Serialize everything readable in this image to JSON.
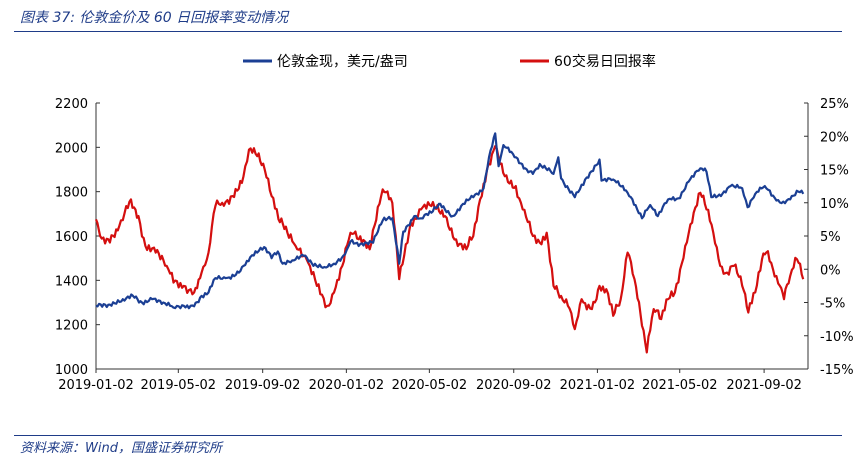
{
  "figure": {
    "caption": "图表 37:  伦敦金价及 60 日回报率变动情况",
    "source": "资料来源：Wind，国盛证券研究所"
  },
  "colors": {
    "gold": "#1b3f94",
    "ret": "#d40f0f",
    "accent": "#1f3c88"
  },
  "chart_data": {
    "type": "line",
    "title": "",
    "xlabel": "",
    "ylabel": "",
    "grid": false,
    "legend_position": "top",
    "x_tick_labels": [
      "2019-01-02",
      "2019-05-02",
      "2019-09-02",
      "2020-01-02",
      "2020-05-02",
      "2020-09-02",
      "2021-01-02",
      "2021-05-02",
      "2021-09-02"
    ],
    "y_left": {
      "min": 1000,
      "max": 2200,
      "ticks": [
        1000,
        1200,
        1400,
        1600,
        1800,
        2000,
        2200
      ]
    },
    "y_right": {
      "min": -15,
      "max": 25,
      "ticks": [
        "-15%",
        "-10%",
        "-5%",
        "0%",
        "5%",
        "10%",
        "15%",
        "20%",
        "25%"
      ]
    },
    "series": [
      {
        "name": "伦敦金现，美元/盎司",
        "axis": "left",
        "color": "#1b3f94",
        "points": [
          [
            "2019-01-02",
            1285
          ],
          [
            "2019-01-20",
            1290
          ],
          [
            "2019-02-10",
            1315
          ],
          [
            "2019-02-25",
            1330
          ],
          [
            "2019-03-10",
            1300
          ],
          [
            "2019-03-25",
            1315
          ],
          [
            "2019-04-10",
            1300
          ],
          [
            "2019-04-25",
            1277
          ],
          [
            "2019-05-10",
            1285
          ],
          [
            "2019-05-25",
            1283
          ],
          [
            "2019-06-05",
            1330
          ],
          [
            "2019-06-15",
            1345
          ],
          [
            "2019-06-25",
            1410
          ],
          [
            "2019-07-10",
            1410
          ],
          [
            "2019-07-25",
            1425
          ],
          [
            "2019-08-05",
            1465
          ],
          [
            "2019-08-15",
            1505
          ],
          [
            "2019-08-25",
            1525
          ],
          [
            "2019-09-04",
            1550
          ],
          [
            "2019-09-15",
            1500
          ],
          [
            "2019-09-24",
            1530
          ],
          [
            "2019-10-01",
            1475
          ],
          [
            "2019-10-15",
            1490
          ],
          [
            "2019-11-01",
            1510
          ],
          [
            "2019-11-15",
            1465
          ],
          [
            "2019-12-01",
            1460
          ],
          [
            "2019-12-15",
            1475
          ],
          [
            "2019-12-31",
            1517
          ],
          [
            "2020-01-08",
            1575
          ],
          [
            "2020-01-20",
            1555
          ],
          [
            "2020-02-10",
            1570
          ],
          [
            "2020-02-24",
            1670
          ],
          [
            "2020-03-09",
            1680
          ],
          [
            "2020-03-19",
            1475
          ],
          [
            "2020-03-25",
            1620
          ],
          [
            "2020-04-10",
            1690
          ],
          [
            "2020-04-20",
            1680
          ],
          [
            "2020-05-05",
            1705
          ],
          [
            "2020-05-18",
            1745
          ],
          [
            "2020-06-05",
            1690
          ],
          [
            "2020-06-20",
            1745
          ],
          [
            "2020-07-05",
            1775
          ],
          [
            "2020-07-20",
            1815
          ],
          [
            "2020-07-28",
            1955
          ],
          [
            "2020-08-06",
            2063
          ],
          [
            "2020-08-11",
            1915
          ],
          [
            "2020-08-18",
            2010
          ],
          [
            "2020-09-01",
            1970
          ],
          [
            "2020-09-21",
            1900
          ],
          [
            "2020-09-30",
            1880
          ],
          [
            "2020-10-10",
            1925
          ],
          [
            "2020-10-30",
            1880
          ],
          [
            "2020-11-06",
            1955
          ],
          [
            "2020-11-10",
            1860
          ],
          [
            "2020-11-30",
            1775
          ],
          [
            "2020-12-15",
            1855
          ],
          [
            "2021-01-05",
            1945
          ],
          [
            "2021-01-08",
            1850
          ],
          [
            "2021-01-25",
            1855
          ],
          [
            "2021-02-15",
            1795
          ],
          [
            "2021-03-01",
            1720
          ],
          [
            "2021-03-08",
            1680
          ],
          [
            "2021-03-20",
            1740
          ],
          [
            "2021-03-31",
            1690
          ],
          [
            "2021-04-15",
            1765
          ],
          [
            "2021-04-30",
            1770
          ],
          [
            "2021-05-15",
            1845
          ],
          [
            "2021-06-01",
            1905
          ],
          [
            "2021-06-10",
            1890
          ],
          [
            "2021-06-17",
            1775
          ],
          [
            "2021-07-01",
            1780
          ],
          [
            "2021-07-15",
            1825
          ],
          [
            "2021-08-01",
            1815
          ],
          [
            "2021-08-09",
            1730
          ],
          [
            "2021-08-20",
            1790
          ],
          [
            "2021-09-03",
            1825
          ],
          [
            "2021-09-20",
            1760
          ],
          [
            "2021-09-30",
            1755
          ],
          [
            "2021-10-10",
            1765
          ],
          [
            "2021-10-22",
            1800
          ],
          [
            "2021-10-29",
            1790
          ]
        ]
      },
      {
        "name": "60交易日回报率",
        "axis": "right",
        "color": "#d40f0f",
        "points": [
          [
            "2019-01-02",
            7.5
          ],
          [
            "2019-01-08",
            5.0
          ],
          [
            "2019-01-20",
            4.5
          ],
          [
            "2019-02-05",
            6.5
          ],
          [
            "2019-02-15",
            9.5
          ],
          [
            "2019-02-22",
            10.5
          ],
          [
            "2019-03-05",
            8.0
          ],
          [
            "2019-03-15",
            3.5
          ],
          [
            "2019-03-30",
            2.5
          ],
          [
            "2019-04-15",
            0.5
          ],
          [
            "2019-04-25",
            -2.0
          ],
          [
            "2019-05-10",
            -2.5
          ],
          [
            "2019-05-25",
            -3.5
          ],
          [
            "2019-06-05",
            -0.5
          ],
          [
            "2019-06-15",
            2.5
          ],
          [
            "2019-06-25",
            9.5
          ],
          [
            "2019-07-05",
            10.0
          ],
          [
            "2019-07-20",
            11.0
          ],
          [
            "2019-08-05",
            14.0
          ],
          [
            "2019-08-13",
            18.0
          ],
          [
            "2019-08-25",
            17.0
          ],
          [
            "2019-09-05",
            15.0
          ],
          [
            "2019-09-15",
            11.0
          ],
          [
            "2019-09-25",
            7.5
          ],
          [
            "2019-10-08",
            5.5
          ],
          [
            "2019-10-20",
            3.5
          ],
          [
            "2019-11-05",
            1.5
          ],
          [
            "2019-11-20",
            -2.5
          ],
          [
            "2019-12-05",
            -5.5
          ],
          [
            "2019-12-15",
            -3.5
          ],
          [
            "2019-12-27",
            0.5
          ],
          [
            "2020-01-08",
            5.5
          ],
          [
            "2020-01-20",
            4.5
          ],
          [
            "2020-02-05",
            3.0
          ],
          [
            "2020-02-24",
            12.0
          ],
          [
            "2020-03-09",
            10.0
          ],
          [
            "2020-03-19",
            -1.5
          ],
          [
            "2020-04-05",
            7.0
          ],
          [
            "2020-04-20",
            9.0
          ],
          [
            "2020-05-05",
            9.5
          ],
          [
            "2020-05-25",
            8.0
          ],
          [
            "2020-06-10",
            4.5
          ],
          [
            "2020-06-25",
            3.0
          ],
          [
            "2020-07-05",
            5.0
          ],
          [
            "2020-07-15",
            10.5
          ],
          [
            "2020-07-25",
            15.0
          ],
          [
            "2020-08-06",
            18.5
          ],
          [
            "2020-08-20",
            14.0
          ],
          [
            "2020-09-05",
            12.5
          ],
          [
            "2020-09-15",
            9.0
          ],
          [
            "2020-09-30",
            5.0
          ],
          [
            "2020-10-10",
            4.0
          ],
          [
            "2020-10-20",
            5.5
          ],
          [
            "2020-10-30",
            -2.5
          ],
          [
            "2020-11-10",
            -4.0
          ],
          [
            "2020-11-20",
            -5.5
          ],
          [
            "2020-11-30",
            -9.0
          ],
          [
            "2020-12-10",
            -4.5
          ],
          [
            "2020-12-25",
            -6.0
          ],
          [
            "2021-01-05",
            -2.5
          ],
          [
            "2021-01-15",
            -3.0
          ],
          [
            "2021-01-25",
            -7.0
          ],
          [
            "2021-02-05",
            -4.5
          ],
          [
            "2021-02-15",
            2.5
          ],
          [
            "2021-02-25",
            -1.5
          ],
          [
            "2021-03-08",
            -8.5
          ],
          [
            "2021-03-15",
            -12.5
          ],
          [
            "2021-03-25",
            -6.0
          ],
          [
            "2021-04-05",
            -7.5
          ],
          [
            "2021-04-15",
            -4.5
          ],
          [
            "2021-04-25",
            -3.5
          ],
          [
            "2021-05-10",
            3.5
          ],
          [
            "2021-05-20",
            7.0
          ],
          [
            "2021-06-01",
            11.5
          ],
          [
            "2021-06-10",
            9.0
          ],
          [
            "2021-06-20",
            5.5
          ],
          [
            "2021-06-30",
            0.5
          ],
          [
            "2021-07-10",
            -0.5
          ],
          [
            "2021-07-20",
            0.5
          ],
          [
            "2021-08-01",
            -2.5
          ],
          [
            "2021-08-10",
            -6.5
          ],
          [
            "2021-08-20",
            -3.5
          ],
          [
            "2021-08-30",
            1.5
          ],
          [
            "2021-09-05",
            2.5
          ],
          [
            "2021-09-15",
            0.0
          ],
          [
            "2021-09-25",
            -2.5
          ],
          [
            "2021-10-01",
            -4.5
          ],
          [
            "2021-10-10",
            -1.0
          ],
          [
            "2021-10-20",
            1.5
          ],
          [
            "2021-10-29",
            -1.5
          ]
        ]
      }
    ]
  }
}
